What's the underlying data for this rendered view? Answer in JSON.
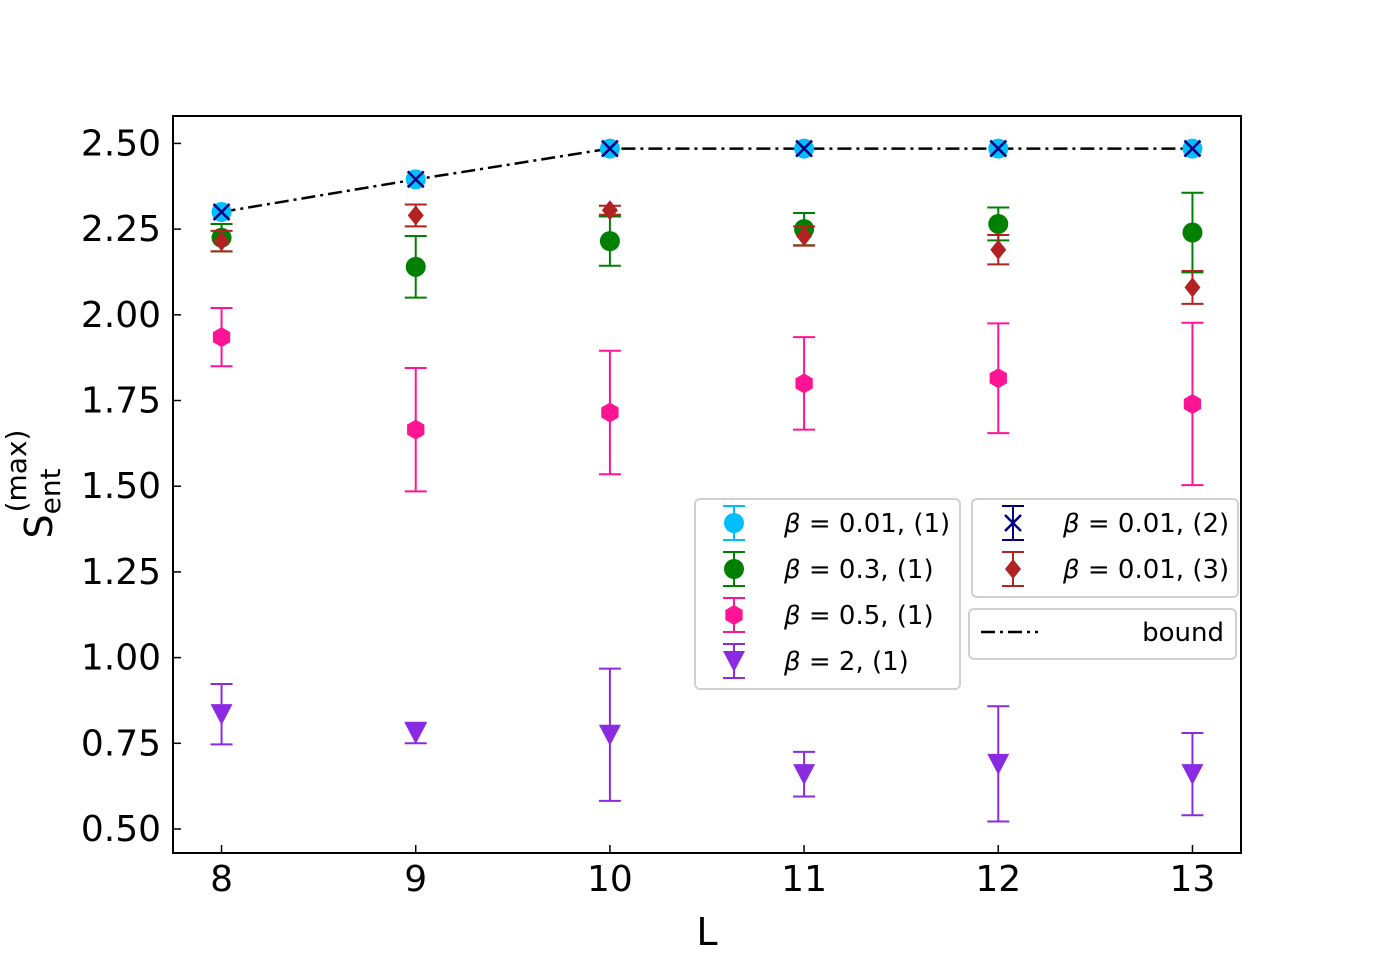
{
  "chart_data": {
    "type": "scatter",
    "xlabel": "L",
    "ylabel": {
      "base": "S",
      "sub": "ent",
      "sup": "(max)"
    },
    "xlim": [
      7.75,
      13.25
    ],
    "ylim": [
      0.43,
      2.58
    ],
    "xticks": [
      8,
      9,
      10,
      11,
      12,
      13
    ],
    "xtick_labels": [
      "8",
      "9",
      "10",
      "11",
      "12",
      "13"
    ],
    "yticks": [
      0.5,
      0.75,
      1.0,
      1.25,
      1.5,
      1.75,
      2.0,
      2.25,
      2.5
    ],
    "ytick_labels": [
      "0.50",
      "0.75",
      "1.00",
      "1.25",
      "1.50",
      "1.75",
      "2.00",
      "2.25",
      "2.50"
    ],
    "x": [
      8,
      9,
      10,
      11,
      12,
      13
    ],
    "series": [
      {
        "name": "β = 0.01, (1)",
        "legend_beta": "0.01",
        "legend_tag": "(1)",
        "color": "#00bfff",
        "marker": "circle",
        "values": [
          2.3,
          2.395,
          2.485,
          2.485,
          2.485,
          2.485
        ],
        "errors": [
          0,
          0,
          0,
          0,
          0,
          0
        ]
      },
      {
        "name": "β = 0.3, (1)",
        "legend_beta": "0.3",
        "legend_tag": "(1)",
        "color": "#008000",
        "marker": "circle",
        "values": [
          2.225,
          2.14,
          2.215,
          2.25,
          2.265,
          2.24
        ],
        "errors": [
          0.04,
          0.09,
          0.072,
          0.047,
          0.048,
          0.116
        ]
      },
      {
        "name": "β = 0.5, (1)",
        "legend_beta": "0.5",
        "legend_tag": "(1)",
        "color": "#ff1493",
        "marker": "hexagon",
        "values": [
          1.935,
          1.665,
          1.715,
          1.8,
          1.815,
          1.74
        ],
        "errors": [
          0.085,
          0.18,
          0.18,
          0.135,
          0.16,
          0.237
        ]
      },
      {
        "name": "β = 2, (1)",
        "legend_beta": "2",
        "legend_tag": "(1)",
        "color": "#8a2be2",
        "marker": "triangle_down",
        "values": [
          0.835,
          0.78,
          0.775,
          0.66,
          0.69,
          0.66
        ],
        "errors": [
          0.088,
          0.03,
          0.193,
          0.065,
          0.168,
          0.12
        ]
      },
      {
        "name": "β = 0.01, (2)",
        "legend_beta": "0.01",
        "legend_tag": "(2)",
        "color": "#000080",
        "marker": "x",
        "values": [
          2.3,
          2.395,
          2.485,
          2.485,
          2.485,
          2.485
        ],
        "errors": [
          0,
          0,
          0,
          0,
          0,
          0
        ]
      },
      {
        "name": "β = 0.01, (3)",
        "legend_beta": "0.01",
        "legend_tag": "(3)",
        "color": "#b22222",
        "marker": "diamond",
        "values": [
          2.215,
          2.29,
          2.305,
          2.23,
          2.19,
          2.08
        ],
        "errors": [
          0.03,
          0.032,
          0.013,
          0.028,
          0.043,
          0.048
        ]
      }
    ],
    "bound": {
      "name": "bound",
      "color": "#000000",
      "linestyle": "dashdot",
      "values": [
        2.3,
        2.395,
        2.485,
        2.485,
        2.485,
        2.485
      ]
    },
    "legend": {
      "left_box": [
        "β = 0.01, (1)",
        "β = 0.3, (1)",
        "β = 0.5, (1)",
        "β = 2, (1)"
      ],
      "right_box": [
        "β = 0.01, (2)",
        "β = 0.01, (3)"
      ],
      "bound_box": "bound",
      "placement": "center-right"
    }
  }
}
